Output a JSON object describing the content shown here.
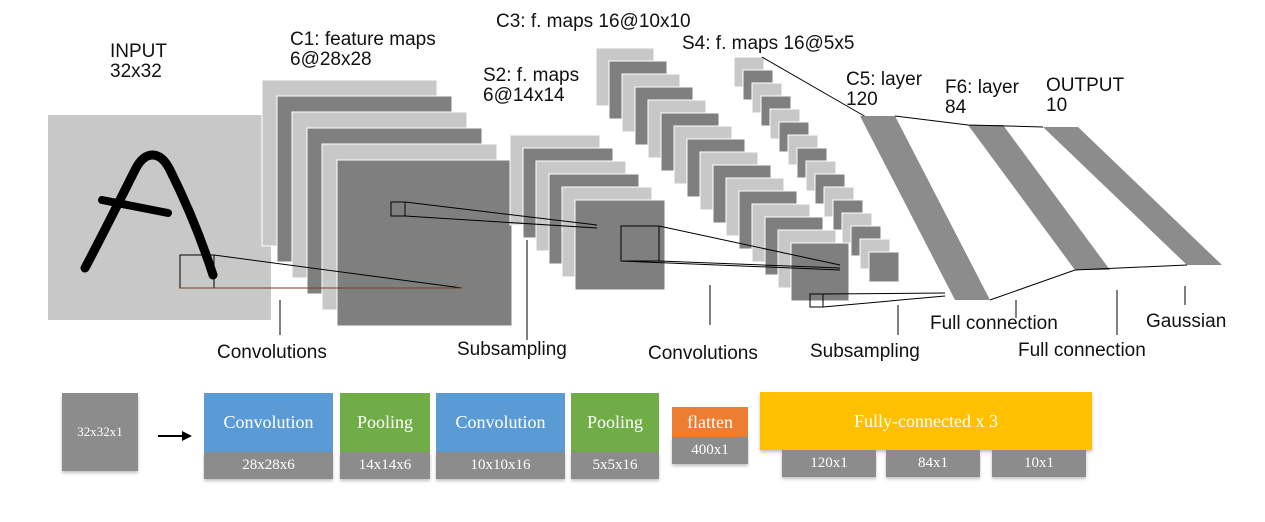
{
  "network": {
    "input": {
      "title": "INPUT",
      "size": "32x32"
    },
    "c1": {
      "title": "C1: feature maps",
      "size": "6@28x28"
    },
    "s2": {
      "title": "S2: f. maps",
      "size": "6@14x14"
    },
    "c3": {
      "title": "C3: f. maps 16@10x10"
    },
    "s4": {
      "title": "S4: f. maps 16@5x5"
    },
    "c5": {
      "title": "C5: layer",
      "size": "120"
    },
    "f6": {
      "title": "F6: layer",
      "size": "84"
    },
    "output": {
      "title": "OUTPUT",
      "size": "10"
    }
  },
  "operations": {
    "conv1": "Convolutions",
    "sub1": "Subsampling",
    "conv2": "Convolutions",
    "sub2": "Subsampling",
    "full1": "Full connection",
    "full2": "Full connection",
    "gaussian": "Gaussian"
  },
  "pipeline": {
    "input": "32x32x1",
    "blocks": [
      {
        "label": "Convolution",
        "size": "28x28x6",
        "color": "#5b9bd5"
      },
      {
        "label": "Pooling",
        "size": "14x14x6",
        "color": "#70ad47"
      },
      {
        "label": "Convolution",
        "size": "10x10x16",
        "color": "#5b9bd5"
      },
      {
        "label": "Pooling",
        "size": "5x5x16",
        "color": "#70ad47"
      },
      {
        "label": "flatten",
        "size": "400x1",
        "color": "#ed7d31"
      }
    ],
    "fc": {
      "label": "Fully-connected x 3",
      "color": "#ffc000",
      "sizes": [
        "120x1",
        "84x1",
        "10x1"
      ]
    }
  },
  "colors": {
    "map_light": "#c8c8c8",
    "map_dark": "#7f7f7f",
    "stroke": "#000000"
  }
}
